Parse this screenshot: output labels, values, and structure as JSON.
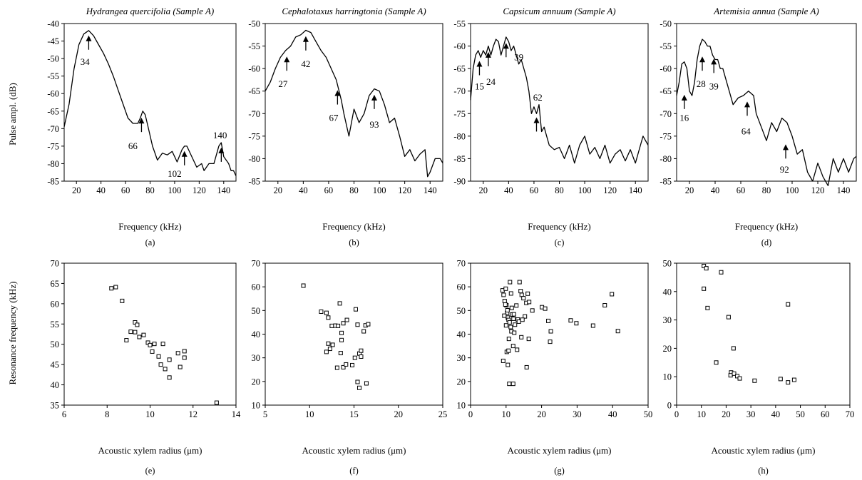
{
  "figure": {
    "ylabel_top": "Pulse ampl. (dB)",
    "ylabel_bottom": "Resonance frequency (kHz)"
  },
  "chart_data": [
    {
      "id": "a",
      "type": "line",
      "panel_label": "(a)",
      "title": "Hydrangea quercifolia (Sample A)",
      "xlabel": "Frequency (kHz)",
      "ylabel": "Pulse ampl. (dB)",
      "xlim": [
        10,
        150
      ],
      "ylim": [
        -85,
        -40
      ],
      "xticks": [
        20,
        40,
        60,
        80,
        100,
        120,
        140
      ],
      "yticks": [
        -85,
        -80,
        -75,
        -70,
        -65,
        -60,
        -55,
        -50,
        -45,
        -40
      ],
      "series": [
        {
          "x": [
            10,
            14,
            18,
            22,
            26,
            30,
            34,
            38,
            42,
            46,
            50,
            54,
            58,
            62,
            66,
            70,
            72,
            74,
            76,
            78,
            82,
            86,
            90,
            94,
            98,
            102,
            106,
            108,
            110,
            114,
            118,
            122,
            124,
            128,
            132,
            136,
            138,
            140,
            144,
            146,
            148,
            150
          ],
          "y": [
            -69.5,
            -63,
            -53,
            -46,
            -43,
            -42,
            -43.5,
            -46,
            -48.5,
            -51.5,
            -55,
            -59,
            -63,
            -67,
            -68.5,
            -68.5,
            -67,
            -65,
            -66,
            -69,
            -75,
            -79,
            -77,
            -77.5,
            -76.5,
            -79.5,
            -76,
            -75,
            -75,
            -78,
            -81,
            -80,
            -82,
            -80,
            -80,
            -75,
            -74,
            -78,
            -80,
            -82,
            -82,
            -83.5
          ]
        }
      ],
      "annotations": [
        {
          "text": "34",
          "x": 30,
          "y": -43,
          "tx": 27,
          "ty": -51
        },
        {
          "text": "66",
          "x": 73,
          "y": -66.5,
          "tx": 66,
          "ty": -75
        },
        {
          "text": "102",
          "x": 108,
          "y": -76,
          "tx": 100,
          "ty": -83
        },
        {
          "text": "140",
          "x": 138,
          "y": -75,
          "tx": 137,
          "ty": -72
        }
      ]
    },
    {
      "id": "b",
      "type": "line",
      "panel_label": "(b)",
      "title": "Cephalotaxus harringtonia (Sample A)",
      "xlabel": "Frequency (kHz)",
      "ylabel": "",
      "xlim": [
        10,
        150
      ],
      "ylim": [
        -85,
        -50
      ],
      "xticks": [
        20,
        40,
        60,
        80,
        100,
        120,
        140
      ],
      "yticks": [
        -85,
        -80,
        -75,
        -70,
        -65,
        -60,
        -55,
        -50
      ],
      "series": [
        {
          "x": [
            10,
            14,
            18,
            22,
            26,
            30,
            34,
            38,
            42,
            46,
            50,
            54,
            58,
            62,
            66,
            70,
            72,
            76,
            80,
            84,
            88,
            92,
            96,
            100,
            104,
            108,
            112,
            116,
            120,
            124,
            128,
            132,
            136,
            138,
            140,
            144,
            148,
            150
          ],
          "y": [
            -65,
            -63,
            -60,
            -57.5,
            -56,
            -55,
            -53,
            -52.5,
            -51.5,
            -52,
            -54,
            -56,
            -57.5,
            -60,
            -62.5,
            -67,
            -70,
            -75,
            -69,
            -72,
            -70,
            -66,
            -64.5,
            -65,
            -68,
            -72,
            -71,
            -75,
            -79.5,
            -78,
            -80.5,
            -79,
            -78,
            -84,
            -83,
            -80,
            -80,
            -81
          ]
        }
      ],
      "annotations": [
        {
          "text": "27",
          "x": 27,
          "y": -57,
          "tx": 24,
          "ty": -63.5
        },
        {
          "text": "42",
          "x": 42,
          "y": -52.5,
          "tx": 42,
          "ty": -59
        },
        {
          "text": "67",
          "x": 67,
          "y": -64.5,
          "tx": 64,
          "ty": -71
        },
        {
          "text": "93",
          "x": 96,
          "y": -65.5,
          "tx": 96,
          "ty": -72.5
        }
      ]
    },
    {
      "id": "c",
      "type": "line",
      "panel_label": "(c)",
      "title": "Capsicum annuum (Sample A)",
      "xlabel": "Frequency (kHz)",
      "ylabel": "",
      "xlim": [
        10,
        150
      ],
      "ylim": [
        -90,
        -55
      ],
      "xticks": [
        20,
        40,
        60,
        80,
        100,
        120,
        140
      ],
      "yticks": [
        -90,
        -85,
        -80,
        -75,
        -70,
        -65,
        -60,
        -55
      ],
      "series": [
        {
          "x": [
            10,
            12,
            14,
            16,
            18,
            20,
            22,
            24,
            26,
            28,
            30,
            32,
            34,
            36,
            38,
            40,
            42,
            44,
            46,
            48,
            50,
            54,
            56,
            58,
            60,
            62,
            64,
            66,
            68,
            70,
            72,
            76,
            80,
            84,
            88,
            92,
            96,
            100,
            104,
            108,
            112,
            116,
            120,
            124,
            128,
            132,
            136,
            140,
            144,
            146,
            150
          ],
          "y": [
            -72,
            -65,
            -62,
            -61,
            -62.5,
            -61,
            -62,
            -60,
            -62,
            -60,
            -58.5,
            -59,
            -62,
            -60,
            -58,
            -59,
            -61,
            -60,
            -62,
            -64,
            -63,
            -67,
            -70,
            -75,
            -73.5,
            -75,
            -73,
            -79,
            -78,
            -80,
            -82,
            -83,
            -82.5,
            -85,
            -82,
            -86,
            -82,
            -80,
            -84,
            -82.5,
            -85,
            -82,
            -86,
            -84,
            -83,
            -85.5,
            -83,
            -86,
            -82,
            -80,
            -82
          ]
        }
      ],
      "annotations": [
        {
          "text": "15",
          "x": 17,
          "y": -63,
          "tx": 17,
          "ty": -69
        },
        {
          "text": "24",
          "x": 24,
          "y": -61,
          "tx": 26,
          "ty": -68
        },
        {
          "text": "39",
          "x": 38,
          "y": -59,
          "tx": 48,
          "ty": -62.5
        },
        {
          "text": "62",
          "x": 62,
          "y": -75.5,
          "tx": 63,
          "ty": -71.5
        }
      ]
    },
    {
      "id": "d",
      "type": "line",
      "panel_label": "(d)",
      "title": "Artemisia annua (Sample A)",
      "xlabel": "Frequency (kHz)",
      "ylabel": "",
      "xlim": [
        10,
        150
      ],
      "ylim": [
        -85,
        -50
      ],
      "xticks": [
        20,
        40,
        60,
        80,
        100,
        120,
        140
      ],
      "yticks": [
        -85,
        -80,
        -75,
        -70,
        -65,
        -60,
        -55,
        -50
      ],
      "series": [
        {
          "x": [
            10,
            12,
            14,
            16,
            18,
            20,
            22,
            24,
            26,
            28,
            30,
            32,
            34,
            36,
            38,
            40,
            42,
            44,
            46,
            48,
            50,
            54,
            58,
            62,
            66,
            70,
            72,
            76,
            80,
            84,
            88,
            92,
            96,
            100,
            104,
            108,
            112,
            116,
            120,
            124,
            128,
            132,
            136,
            140,
            144,
            148,
            150
          ],
          "y": [
            -66,
            -63,
            -59,
            -58.5,
            -60,
            -65,
            -66,
            -63,
            -58,
            -55,
            -53.5,
            -54,
            -55,
            -55,
            -57,
            -58,
            -58,
            -60,
            -60,
            -62,
            -64,
            -68,
            -66.5,
            -66,
            -65,
            -66,
            -70,
            -73,
            -76,
            -72,
            -74,
            -71,
            -72,
            -75,
            -79,
            -78,
            -83,
            -85,
            -81,
            -84,
            -86,
            -80,
            -83,
            -80,
            -83,
            -80,
            -79.5
          ]
        }
      ],
      "annotations": [
        {
          "text": "16",
          "x": 16,
          "y": -65.5,
          "tx": 16,
          "ty": -71
        },
        {
          "text": "28",
          "x": 30,
          "y": -57,
          "tx": 29,
          "ty": -63.5
        },
        {
          "text": "39",
          "x": 39,
          "y": -57.5,
          "tx": 39,
          "ty": -64
        },
        {
          "text": "64",
          "x": 65,
          "y": -67,
          "tx": 64,
          "ty": -74
        },
        {
          "text": "92",
          "x": 95,
          "y": -76.5,
          "tx": 94,
          "ty": -82.5
        }
      ]
    },
    {
      "id": "e",
      "type": "scatter",
      "panel_label": "(e)",
      "xlabel": "Acoustic xylem radius (μm)",
      "ylabel": "Resonance frequency (kHz)",
      "xlim": [
        6,
        14
      ],
      "ylim": [
        35,
        70
      ],
      "xticks": [
        6,
        8,
        10,
        12,
        14
      ],
      "yticks": [
        35,
        40,
        45,
        50,
        55,
        60,
        65,
        70
      ],
      "points": [
        [
          8.2,
          63.8
        ],
        [
          8.4,
          64.1
        ],
        [
          8.7,
          60.7
        ],
        [
          8.9,
          51
        ],
        [
          9.1,
          53.1
        ],
        [
          9.3,
          53
        ],
        [
          9.3,
          55.4
        ],
        [
          9.4,
          54.8
        ],
        [
          9.5,
          51.8
        ],
        [
          9.7,
          52.3
        ],
        [
          9.9,
          50.4
        ],
        [
          10,
          49.8
        ],
        [
          10.1,
          48.2
        ],
        [
          10.2,
          50.1
        ],
        [
          10.4,
          47
        ],
        [
          10.5,
          45
        ],
        [
          10.6,
          50.1
        ],
        [
          10.7,
          43.9
        ],
        [
          10.9,
          41.8
        ],
        [
          10.9,
          46.2
        ],
        [
          11.3,
          47.8
        ],
        [
          11.4,
          44.4
        ],
        [
          11.6,
          48.3
        ],
        [
          11.6,
          46.7
        ],
        [
          13.1,
          35.6
        ]
      ]
    },
    {
      "id": "f",
      "type": "scatter",
      "panel_label": "(f)",
      "xlabel": "Acoustic xylem radius (μm)",
      "ylabel": "",
      "xlim": [
        5,
        25
      ],
      "ylim": [
        10,
        70
      ],
      "xticks": [
        5,
        10,
        15,
        20,
        25
      ],
      "yticks": [
        10,
        20,
        30,
        40,
        50,
        60,
        70
      ],
      "points": [
        [
          9.3,
          60.5
        ],
        [
          11.3,
          49.5
        ],
        [
          11.9,
          49
        ],
        [
          12.1,
          47
        ],
        [
          12.5,
          43.5
        ],
        [
          12.9,
          43.6
        ],
        [
          13.2,
          43.5
        ],
        [
          13.4,
          53
        ],
        [
          13.6,
          40.5
        ],
        [
          13.6,
          37.5
        ],
        [
          13.8,
          44.6
        ],
        [
          14.2,
          46
        ],
        [
          15.2,
          50.5
        ],
        [
          15.4,
          44
        ],
        [
          12.1,
          36
        ],
        [
          11.9,
          32.5
        ],
        [
          12.3,
          33.8
        ],
        [
          12.6,
          35.5
        ],
        [
          13.1,
          25.8
        ],
        [
          13.5,
          32
        ],
        [
          13.8,
          26
        ],
        [
          14.1,
          27.2
        ],
        [
          14.8,
          26.9
        ],
        [
          15.1,
          30
        ],
        [
          15.6,
          31.8
        ],
        [
          15.8,
          30.5
        ],
        [
          15.8,
          33
        ],
        [
          16.1,
          41.2
        ],
        [
          16.3,
          43.7
        ],
        [
          16.6,
          44.2
        ],
        [
          15.4,
          19.8
        ],
        [
          15.6,
          17.3
        ],
        [
          16.4,
          19.2
        ]
      ]
    },
    {
      "id": "g",
      "type": "scatter",
      "panel_label": "(g)",
      "xlabel": "Acoustic xylem radius (μm)",
      "ylabel": "",
      "xlim": [
        0,
        50
      ],
      "ylim": [
        10,
        70
      ],
      "xticks": [
        0,
        10,
        20,
        30,
        40,
        50
      ],
      "yticks": [
        10,
        20,
        30,
        40,
        50,
        60,
        70
      ],
      "points": [
        [
          9,
          58.5
        ],
        [
          9.3,
          56.6
        ],
        [
          9.6,
          54
        ],
        [
          9.9,
          59.2
        ],
        [
          10.1,
          52.2
        ],
        [
          10.3,
          49
        ],
        [
          10.5,
          47
        ],
        [
          10.7,
          46
        ],
        [
          11,
          45
        ],
        [
          11.3,
          43
        ],
        [
          11.5,
          41.2
        ],
        [
          9.5,
          47.8
        ],
        [
          10,
          43.7
        ],
        [
          10.8,
          38
        ],
        [
          11.1,
          62
        ],
        [
          11.4,
          57.2
        ],
        [
          11.7,
          48.3
        ],
        [
          12.1,
          46.5
        ],
        [
          12.5,
          44
        ],
        [
          12.9,
          52.1
        ],
        [
          13.3,
          46.2
        ],
        [
          13.8,
          62
        ],
        [
          14.1,
          58.2
        ],
        [
          14.4,
          56.6
        ],
        [
          14.9,
          55.2
        ],
        [
          15.3,
          47.5
        ],
        [
          15.7,
          53.2
        ],
        [
          16.1,
          57.1
        ],
        [
          16.5,
          53.6
        ],
        [
          17.4,
          50
        ],
        [
          12,
          35
        ],
        [
          12.3,
          40.6
        ],
        [
          13.1,
          33.4
        ],
        [
          14.3,
          38.7
        ],
        [
          15.8,
          26
        ],
        [
          16.4,
          38
        ],
        [
          10.2,
          32.5
        ],
        [
          10.7,
          33
        ],
        [
          10.5,
          27
        ],
        [
          9.2,
          28.7
        ],
        [
          10.9,
          19
        ],
        [
          12,
          19
        ],
        [
          20.1,
          51.4
        ],
        [
          21,
          50.8
        ],
        [
          21.9,
          45.6
        ],
        [
          22.6,
          41.2
        ],
        [
          22.4,
          36.8
        ],
        [
          28.2,
          45.8
        ],
        [
          29.8,
          44.6
        ],
        [
          34.5,
          43.6
        ],
        [
          37.8,
          52.2
        ],
        [
          39.8,
          56.9
        ],
        [
          41.5,
          41.3
        ],
        [
          9.8,
          52.5
        ],
        [
          10.4,
          50.1
        ],
        [
          11.6,
          51.1
        ],
        [
          12.2,
          48.4
        ],
        [
          13.6,
          45.3
        ],
        [
          14.6,
          46.1
        ]
      ]
    },
    {
      "id": "h",
      "type": "scatter",
      "panel_label": "(h)",
      "xlabel": "Acoustic xylem radius (μm)",
      "ylabel": "",
      "xlim": [
        0,
        70
      ],
      "ylim": [
        0,
        50
      ],
      "xticks": [
        0,
        10,
        20,
        30,
        40,
        50,
        60,
        70
      ],
      "yticks": [
        0,
        10,
        20,
        30,
        40,
        50
      ],
      "points": [
        [
          11,
          49
        ],
        [
          12,
          48.2
        ],
        [
          11,
          41
        ],
        [
          12.5,
          34.2
        ],
        [
          18,
          46.8
        ],
        [
          21,
          31
        ],
        [
          16,
          15
        ],
        [
          23,
          20
        ],
        [
          22,
          11.5
        ],
        [
          21.8,
          10.5
        ],
        [
          23.2,
          11.1
        ],
        [
          24.5,
          10.2
        ],
        [
          25.5,
          9.4
        ],
        [
          31.5,
          8.6
        ],
        [
          42,
          9.2
        ],
        [
          45,
          8
        ],
        [
          47.5,
          8.9
        ],
        [
          45,
          35.5
        ]
      ]
    }
  ]
}
